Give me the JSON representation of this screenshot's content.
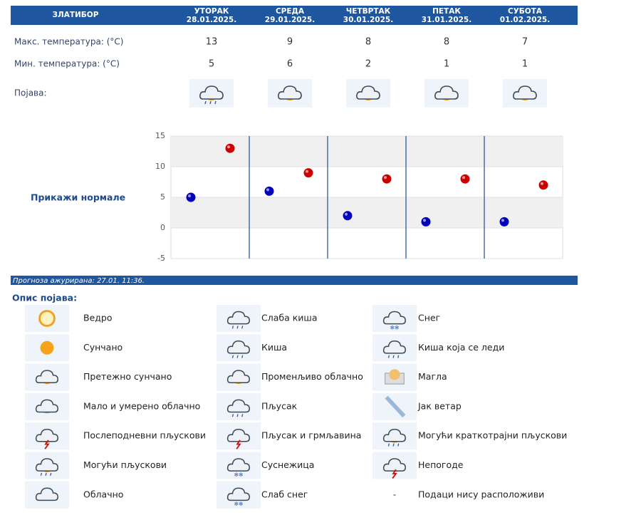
{
  "header": {
    "station": "ЗЛАТИБОР",
    "days": [
      {
        "name": "УТОРАК",
        "date": "28.01.2025."
      },
      {
        "name": "СРЕДА",
        "date": "29.01.2025."
      },
      {
        "name": "ЧЕТВРТАК",
        "date": "30.01.2025."
      },
      {
        "name": "ПЕТАК",
        "date": "31.01.2025."
      },
      {
        "name": "СУБОТА",
        "date": "01.02.2025."
      }
    ]
  },
  "rows": {
    "max_label": "Макс. температура: (°C)",
    "max": [
      13,
      9,
      8,
      8,
      7
    ],
    "min_label": "Мин. температура: (°C)",
    "min": [
      5,
      6,
      2,
      1,
      1
    ],
    "phenomena_label": "Појава:"
  },
  "chart_data": {
    "type": "dot",
    "link": "Прикажи нормале",
    "ylim": [
      -5,
      15
    ],
    "yticks": [
      -5,
      0,
      5,
      10,
      15
    ],
    "max_color": "#cc0000",
    "min_color": "#0000bb"
  },
  "footer": {
    "updated": "Прогноза ажурирана:  27.01. 11:36."
  },
  "legend": {
    "title": "Опис појава:",
    "items": [
      {
        "label": "Ведро"
      },
      {
        "label": "Сунчано"
      },
      {
        "label": "Претежно сунчано"
      },
      {
        "label": "Мало и умерено облачно"
      },
      {
        "label": "Послеподневни пљускови"
      },
      {
        "label": "Могући пљускови"
      },
      {
        "label": "Облачно"
      },
      {
        "label": "Слаба киша"
      },
      {
        "label": "Киша"
      },
      {
        "label": "Променљиво облачно"
      },
      {
        "label": "Пљусак"
      },
      {
        "label": "Пљусак и грмљавина"
      },
      {
        "label": "Суснежица"
      },
      {
        "label": "Слаб снег"
      },
      {
        "label": "Снег"
      },
      {
        "label": "Киша која се леди"
      },
      {
        "label": "Магла"
      },
      {
        "label": "Јак ветар"
      },
      {
        "label": "Могући краткотрајни пљускови"
      },
      {
        "label": "Непогоде"
      },
      {
        "icon_text": "-",
        "label": "Подаци нису расположиви"
      }
    ]
  }
}
